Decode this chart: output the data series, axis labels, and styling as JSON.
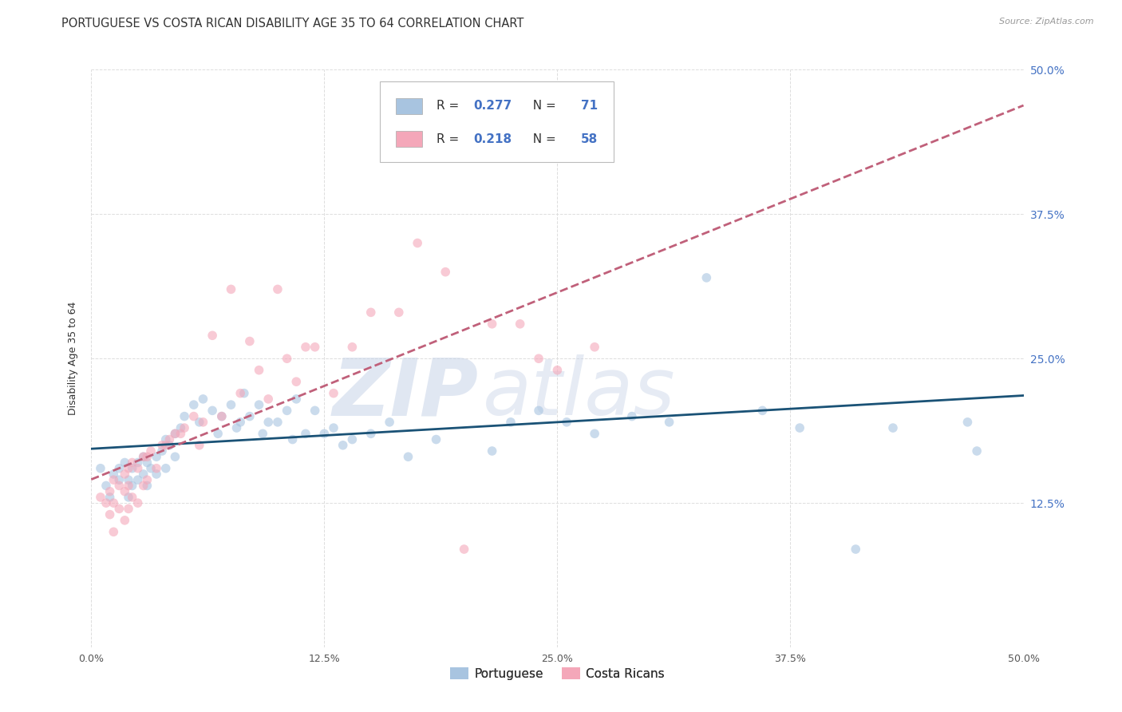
{
  "title": "PORTUGUESE VS COSTA RICAN DISABILITY AGE 35 TO 64 CORRELATION CHART",
  "source": "Source: ZipAtlas.com",
  "ylabel": "Disability Age 35 to 64",
  "xlim": [
    0.0,
    0.5
  ],
  "ylim": [
    0.0,
    0.5
  ],
  "xtick_labels": [
    "0.0%",
    "12.5%",
    "25.0%",
    "37.5%",
    "50.0%"
  ],
  "ytick_labels": [
    "",
    "12.5%",
    "25.0%",
    "37.5%",
    "50.0%"
  ],
  "xtick_vals": [
    0.0,
    0.125,
    0.25,
    0.375,
    0.5
  ],
  "ytick_vals": [
    0.0,
    0.125,
    0.25,
    0.375,
    0.5
  ],
  "portuguese_color": "#a8c4e0",
  "costa_rican_color": "#f4a7b9",
  "portuguese_line_color": "#1a5276",
  "costa_rican_line_color": "#c0607a",
  "r_portuguese": 0.277,
  "n_portuguese": 71,
  "r_costa_rican": 0.218,
  "n_costa_rican": 58,
  "background_color": "#ffffff",
  "grid_color": "#dddddd",
  "portuguese_x": [
    0.005,
    0.008,
    0.01,
    0.012,
    0.015,
    0.015,
    0.018,
    0.02,
    0.02,
    0.022,
    0.022,
    0.025,
    0.025,
    0.028,
    0.028,
    0.03,
    0.03,
    0.032,
    0.035,
    0.035,
    0.038,
    0.04,
    0.04,
    0.042,
    0.045,
    0.045,
    0.048,
    0.05,
    0.055,
    0.058,
    0.06,
    0.065,
    0.068,
    0.07,
    0.075,
    0.078,
    0.08,
    0.082,
    0.085,
    0.09,
    0.092,
    0.095,
    0.1,
    0.105,
    0.108,
    0.11,
    0.115,
    0.12,
    0.125,
    0.13,
    0.135,
    0.14,
    0.15,
    0.16,
    0.17,
    0.185,
    0.2,
    0.215,
    0.225,
    0.24,
    0.255,
    0.27,
    0.29,
    0.31,
    0.33,
    0.36,
    0.38,
    0.41,
    0.43,
    0.47,
    0.475
  ],
  "portuguese_y": [
    0.155,
    0.14,
    0.13,
    0.15,
    0.155,
    0.145,
    0.16,
    0.145,
    0.13,
    0.155,
    0.14,
    0.16,
    0.145,
    0.165,
    0.15,
    0.16,
    0.14,
    0.155,
    0.165,
    0.15,
    0.17,
    0.18,
    0.155,
    0.175,
    0.185,
    0.165,
    0.19,
    0.2,
    0.21,
    0.195,
    0.215,
    0.205,
    0.185,
    0.2,
    0.21,
    0.19,
    0.195,
    0.22,
    0.2,
    0.21,
    0.185,
    0.195,
    0.195,
    0.205,
    0.18,
    0.215,
    0.185,
    0.205,
    0.185,
    0.19,
    0.175,
    0.18,
    0.185,
    0.195,
    0.165,
    0.18,
    0.425,
    0.17,
    0.195,
    0.205,
    0.195,
    0.185,
    0.2,
    0.195,
    0.32,
    0.205,
    0.19,
    0.085,
    0.19,
    0.195,
    0.17
  ],
  "costa_rican_x": [
    0.005,
    0.008,
    0.01,
    0.01,
    0.012,
    0.012,
    0.012,
    0.015,
    0.015,
    0.018,
    0.018,
    0.018,
    0.02,
    0.02,
    0.02,
    0.022,
    0.022,
    0.025,
    0.025,
    0.028,
    0.028,
    0.03,
    0.03,
    0.032,
    0.035,
    0.038,
    0.04,
    0.042,
    0.045,
    0.048,
    0.05,
    0.055,
    0.058,
    0.06,
    0.065,
    0.07,
    0.075,
    0.08,
    0.085,
    0.09,
    0.095,
    0.1,
    0.105,
    0.11,
    0.115,
    0.12,
    0.13,
    0.14,
    0.15,
    0.165,
    0.175,
    0.19,
    0.2,
    0.215,
    0.23,
    0.24,
    0.25,
    0.27
  ],
  "costa_rican_y": [
    0.13,
    0.125,
    0.135,
    0.115,
    0.145,
    0.125,
    0.1,
    0.14,
    0.12,
    0.15,
    0.135,
    0.11,
    0.155,
    0.14,
    0.12,
    0.16,
    0.13,
    0.155,
    0.125,
    0.165,
    0.14,
    0.165,
    0.145,
    0.17,
    0.155,
    0.175,
    0.175,
    0.18,
    0.185,
    0.185,
    0.19,
    0.2,
    0.175,
    0.195,
    0.27,
    0.2,
    0.31,
    0.22,
    0.265,
    0.24,
    0.215,
    0.31,
    0.25,
    0.23,
    0.26,
    0.26,
    0.22,
    0.26,
    0.29,
    0.29,
    0.35,
    0.325,
    0.085,
    0.28,
    0.28,
    0.25,
    0.24,
    0.26
  ],
  "watermark_zip": "ZIP",
  "watermark_atlas": "atlas",
  "title_fontsize": 10.5,
  "axis_label_fontsize": 9,
  "tick_fontsize": 9,
  "marker_size": 70,
  "marker_alpha": 0.6,
  "line_width": 2.0
}
